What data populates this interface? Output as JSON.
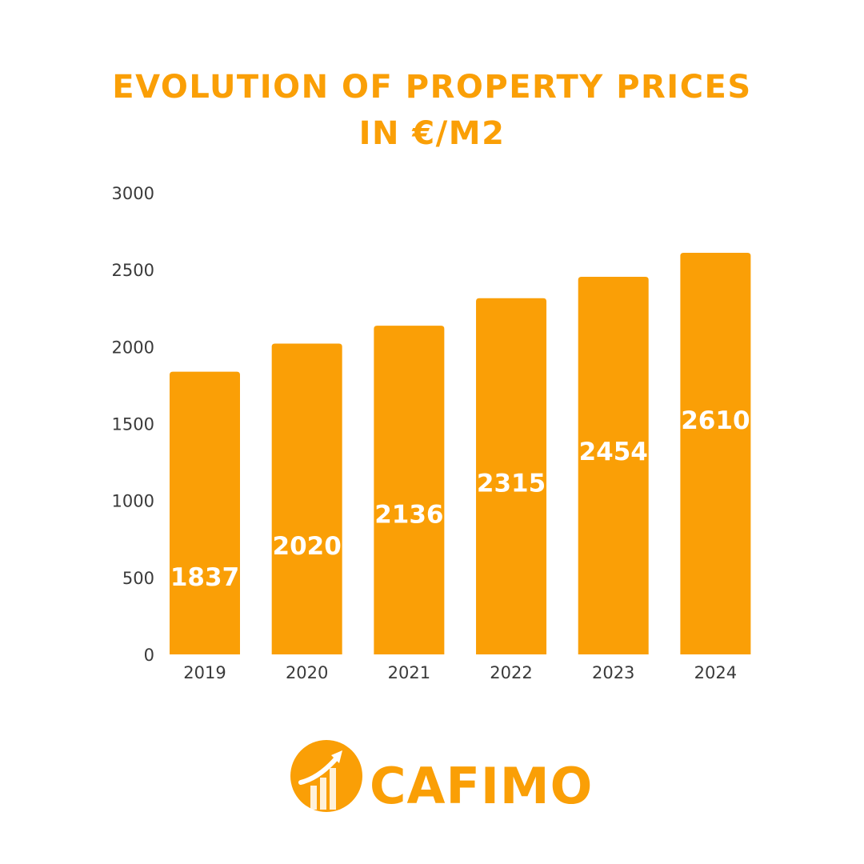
{
  "colors": {
    "accent": "#FA9F06",
    "axis_text": "#3a3a3a",
    "bar_label": "#ffffff",
    "background": "#ffffff"
  },
  "brand": {
    "name": "CAFIMO",
    "logo_icon": "rising-chart-circle-icon"
  },
  "chart_data": {
    "type": "bar",
    "title": [
      "EVOLUTION OF PROPERTY PRICES",
      "IN €/M2"
    ],
    "xlabel": "",
    "ylabel": "",
    "categories": [
      "2019",
      "2020",
      "2021",
      "2022",
      "2023",
      "2024"
    ],
    "values": [
      1837,
      2020,
      2136,
      2315,
      2454,
      2610
    ],
    "data_labels": [
      "1837",
      "2020",
      "2136",
      "2315",
      "2454",
      "2610"
    ],
    "ylim": [
      0,
      3000
    ],
    "yticks": [
      0,
      500,
      1000,
      1500,
      2000,
      2500,
      3000
    ],
    "ytick_labels": [
      "0",
      "500",
      "1000",
      "1500",
      "2000",
      "2500",
      "3000"
    ],
    "grid": false,
    "legend": "none"
  }
}
